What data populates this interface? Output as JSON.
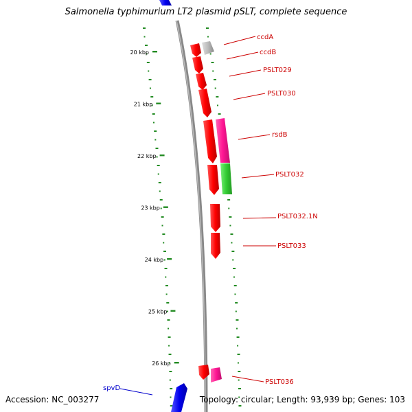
{
  "title": "Salmonella typhimurium LT2 plasmid pSLT, complete sequence",
  "footer": {
    "accession": "Accession: NC_003277",
    "summary": "Topology: circular; Length: 93,939 bp; Genes: 103"
  },
  "ruler": {
    "unit": "kbp",
    "ticks": [
      {
        "kbp": 20,
        "label": "20 kbp"
      },
      {
        "kbp": 21,
        "label": "21 kbp"
      },
      {
        "kbp": 22,
        "label": "22 kbp"
      },
      {
        "kbp": 23,
        "label": "23 kbp"
      },
      {
        "kbp": 24,
        "label": "24 kbp"
      },
      {
        "kbp": 25,
        "label": "25 kbp"
      },
      {
        "kbp": 26,
        "label": "26 kbp"
      }
    ]
  },
  "genes": [
    {
      "label": "ccdA",
      "color": "#cc0000",
      "category": "red"
    },
    {
      "label": "ccdB",
      "color": "#aaaaaa",
      "category": "grey"
    },
    {
      "label": "PSLT029",
      "color": "#ff0000",
      "category": "red"
    },
    {
      "label": "PSLT030",
      "color": "#ff0000",
      "category": "red"
    },
    {
      "label": "rsdB",
      "color": "#ff1493",
      "category": "magenta"
    },
    {
      "label": "PSLT032",
      "color": "#33cc33",
      "category": "green"
    },
    {
      "label": "PSLT032.1N",
      "color": "#ff0000",
      "category": "red"
    },
    {
      "label": "PSLT033",
      "color": "#ff0000",
      "category": "red"
    },
    {
      "label": "PSLT036",
      "color": "#ff1493",
      "category": "magenta"
    },
    {
      "label": "spvD",
      "color": "#0000ff",
      "category": "blue"
    }
  ],
  "colors": {
    "backbone": "#888888",
    "gc_dots": "#228b22",
    "label_red": "#cc0000",
    "label_blue": "#0000cc"
  }
}
